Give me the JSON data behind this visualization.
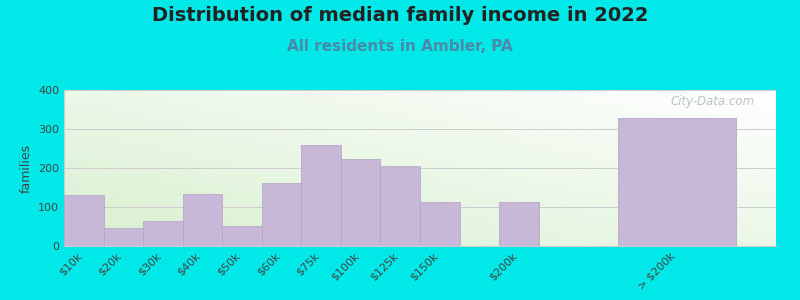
{
  "title": "Distribution of median family income in 2022",
  "subtitle": "All residents in Ambler, PA",
  "categories": [
    "$10k",
    "$20k",
    "$30k",
    "$40k",
    "$50k",
    "$60k",
    "$75k",
    "$100k",
    "$125k",
    "$150k",
    "$200k",
    "> $200k"
  ],
  "values": [
    130,
    47,
    65,
    133,
    52,
    162,
    258,
    222,
    204,
    113,
    113,
    328
  ],
  "x_positions": [
    0,
    1,
    2,
    3,
    4,
    5,
    6,
    7,
    8,
    9,
    11,
    14
  ],
  "bar_widths": [
    1,
    1,
    1,
    1,
    1,
    1,
    1,
    1,
    1,
    1,
    1,
    3
  ],
  "bar_color": "#c8b8d8",
  "bar_edge_color": "#b8a8c8",
  "background_color": "#00e8e8",
  "ylabel": "families",
  "ylim": [
    0,
    400
  ],
  "yticks": [
    0,
    100,
    200,
    300,
    400
  ],
  "title_fontsize": 14,
  "subtitle_fontsize": 11,
  "subtitle_color": "#4a8aaa",
  "watermark": "City-Data.com",
  "watermark_color": "#b0b8c0",
  "tick_label_fontsize": 8
}
